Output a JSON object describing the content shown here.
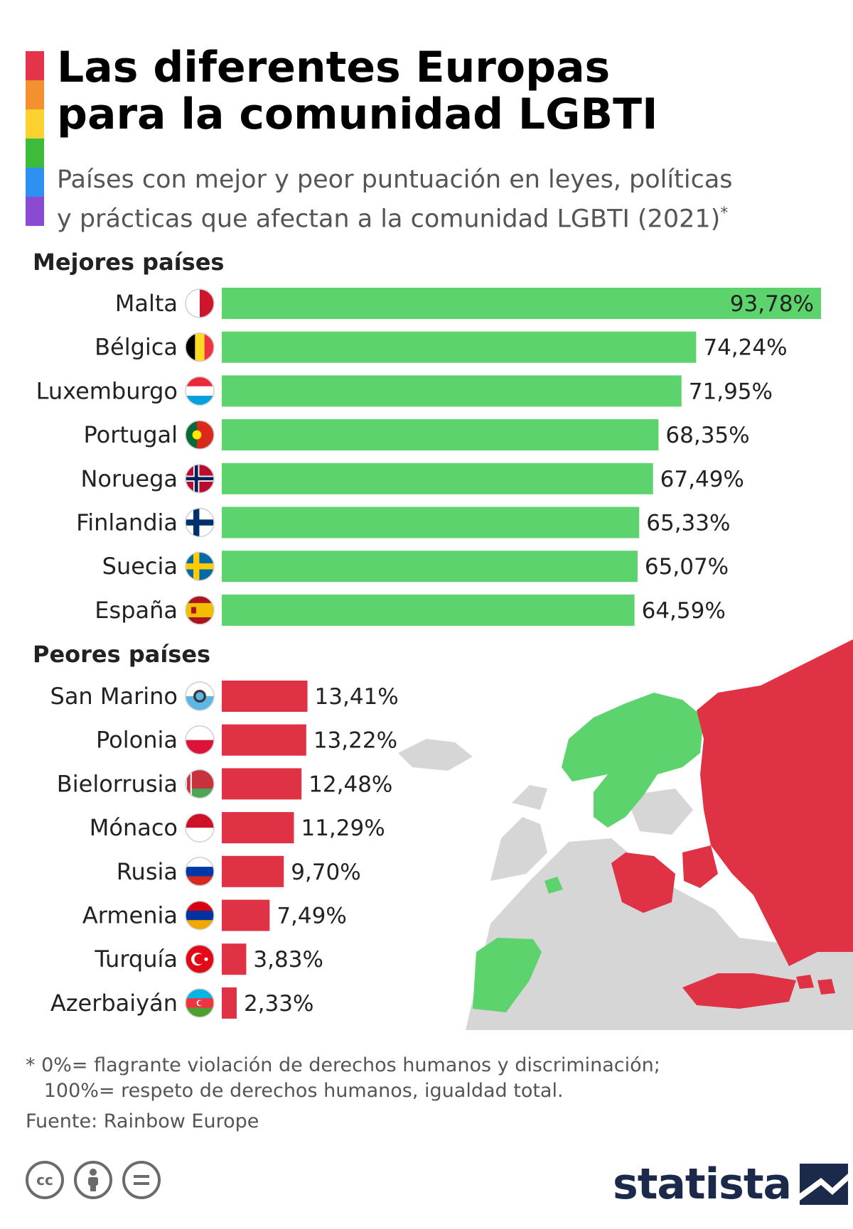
{
  "title_lines": [
    "Las diferentes Europas",
    "para la comunidad LGBTI"
  ],
  "subtitle_lines": [
    "Países con mejor y peor puntuación en leyes, políticas",
    "y prácticas que afectan a la comunidad LGBTI (2021)"
  ],
  "subtitle_mark": "*",
  "rainbow_colors": [
    "#e5334b",
    "#f39131",
    "#fbd22f",
    "#3dbb3a",
    "#2e90f0",
    "#8a4bd2"
  ],
  "chart_data": {
    "type": "bar",
    "orientation": "horizontal",
    "xlim": [
      0,
      100
    ],
    "groups": [
      {
        "name": "Mejores países",
        "color": "#5cd36c",
        "categories": [
          "Malta",
          "Bélgica",
          "Luxemburgo",
          "Portugal",
          "Noruega",
          "Finlandia",
          "Suecia",
          "España"
        ],
        "values": [
          93.78,
          74.24,
          71.95,
          68.35,
          67.49,
          65.33,
          65.07,
          64.59
        ],
        "labels": [
          "93,78%",
          "74,24%",
          "71,95%",
          "68,35%",
          "67,49%",
          "65,33%",
          "65,07%",
          "64,59%"
        ]
      },
      {
        "name": "Peores países",
        "color": "#df3345",
        "categories": [
          "San Marino",
          "Polonia",
          "Bielorrusia",
          "Mónaco",
          "Rusia",
          "Armenia",
          "Turquía",
          "Azerbaiyán"
        ],
        "values": [
          13.41,
          13.22,
          12.48,
          11.29,
          9.7,
          7.49,
          3.83,
          2.33
        ],
        "labels": [
          "13,41%",
          "13,22%",
          "12,48%",
          "11,29%",
          "9,70%",
          "7,49%",
          "3,83%",
          "2,33%"
        ]
      }
    ]
  },
  "flags": {
    "Malta": "flag-malta-icon",
    "Bélgica": "flag-belgium-icon",
    "Luxemburgo": "flag-luxembourg-icon",
    "Portugal": "flag-portugal-icon",
    "Noruega": "flag-norway-icon",
    "Finlandia": "flag-finland-icon",
    "Suecia": "flag-sweden-icon",
    "España": "flag-spain-icon",
    "San Marino": "flag-san-marino-icon",
    "Polonia": "flag-poland-icon",
    "Bielorrusia": "flag-belarus-icon",
    "Mónaco": "flag-monaco-icon",
    "Rusia": "flag-russia-icon",
    "Armenia": "flag-armenia-icon",
    "Turquía": "flag-turkey-icon",
    "Azerbaiyán": "flag-azerbaijan-icon"
  },
  "map_colors": {
    "best": "#5cd36c",
    "worst": "#df3345",
    "other": "#d6d6d6"
  },
  "footnote_lines": [
    "* 0%= flagrante violación de derechos humanos y discriminación;",
    "   100%= respeto de derechos humanos, igualdad total."
  ],
  "source": "Fuente: Rainbow Europe",
  "license_icons": [
    "cc-icon",
    "by-icon",
    "nd-icon"
  ],
  "logo_text": "statista",
  "logo_color": "#1b2a4a"
}
